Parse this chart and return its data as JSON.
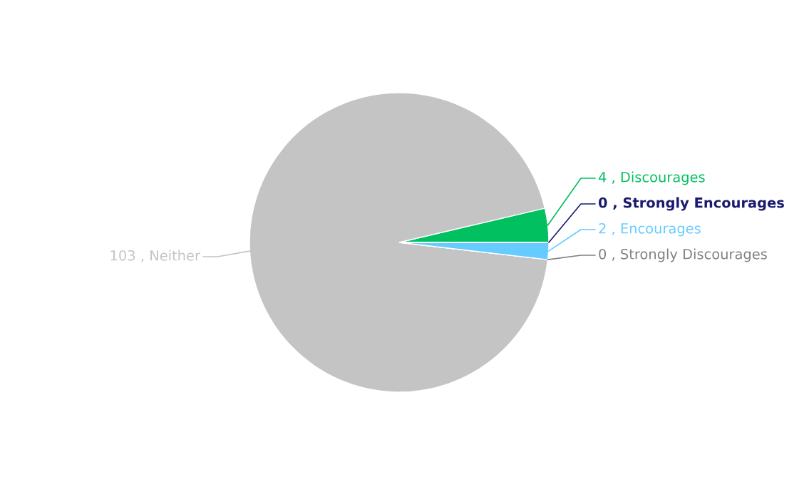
{
  "chart_data": {
    "type": "pie",
    "categories": [
      "Discourages",
      "Neither",
      "Strongly Discourages",
      "Encourages",
      "Strongly Encourages"
    ],
    "values": [
      4,
      103,
      0,
      2,
      0
    ],
    "colors": [
      "#00c060",
      "#c4c4c4",
      "#808080",
      "#66ccff",
      "#1a1a6e"
    ],
    "value_labels": [
      "4 ,",
      "103 ,",
      "0 ,",
      "2 ,",
      "0 ,"
    ]
  }
}
